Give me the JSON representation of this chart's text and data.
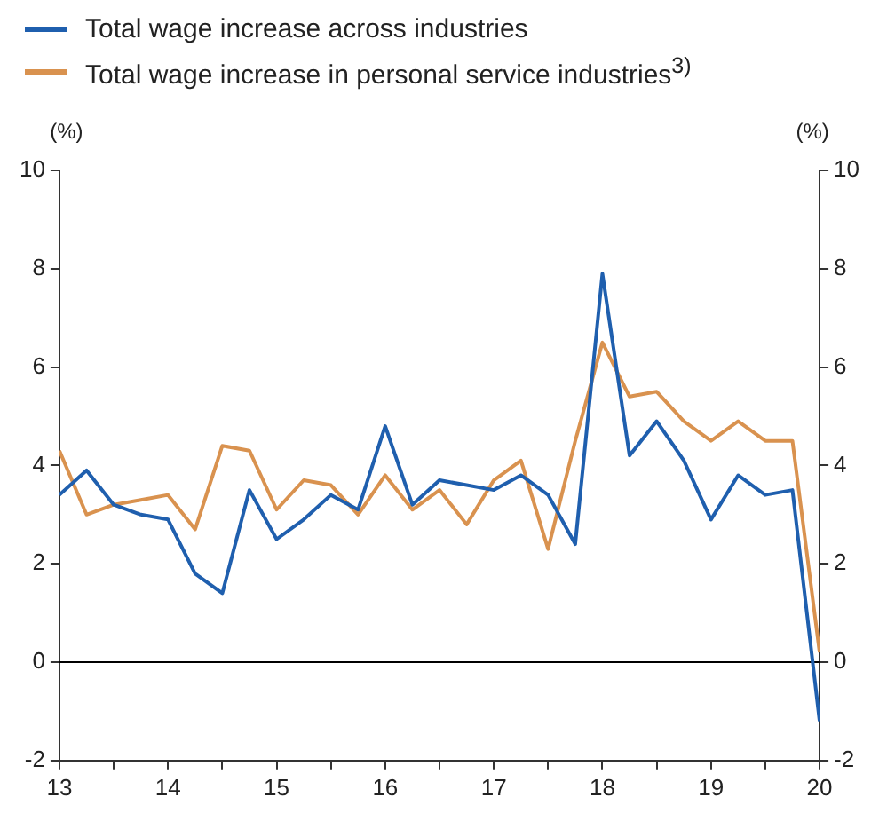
{
  "chart_data": {
    "type": "line",
    "legend": "top left",
    "ylabel": "(%)",
    "y2label": "(%)",
    "x": [
      13,
      13.25,
      13.5,
      13.75,
      14,
      14.25,
      14.5,
      14.75,
      15,
      15.25,
      15.5,
      15.75,
      16,
      16.25,
      16.5,
      16.75,
      17,
      17.25,
      17.5,
      17.75,
      18,
      18.25,
      18.5,
      18.75,
      19,
      19.25,
      19.5,
      19.75,
      20
    ],
    "series": [
      {
        "name": "Total wage increase across industries",
        "color": "#1f5fae",
        "values": [
          3.4,
          3.9,
          3.2,
          3.0,
          2.9,
          1.8,
          1.4,
          3.5,
          2.5,
          2.9,
          3.4,
          3.1,
          4.8,
          3.2,
          3.7,
          3.6,
          3.5,
          3.8,
          3.4,
          2.4,
          7.9,
          4.2,
          4.9,
          4.1,
          2.9,
          3.8,
          3.4,
          3.5,
          -1.2
        ]
      },
      {
        "name": "Total wage increase in personal service industries$^{3)}$",
        "color": "#d9924f",
        "values": [
          4.3,
          3.0,
          3.2,
          3.3,
          3.4,
          2.7,
          4.4,
          4.3,
          3.1,
          3.7,
          3.6,
          3.0,
          3.8,
          3.1,
          3.5,
          2.8,
          3.7,
          4.1,
          2.3,
          4.5,
          6.5,
          5.4,
          5.5,
          4.9,
          4.5,
          4.9,
          4.5,
          4.5,
          0.2
        ]
      }
    ],
    "xlim": [
      13,
      20
    ],
    "xticks": [
      13,
      {
        "value": 13.5,
        "label": null
      },
      14,
      {
        "value": 14.5,
        "label": null
      },
      15,
      {
        "value": 15.5,
        "label": null
      },
      16,
      {
        "value": 16.5,
        "label": null
      },
      17,
      {
        "value": 17.5,
        "label": null
      },
      18,
      {
        "value": 18.5,
        "label": null
      },
      19,
      {
        "value": 19.5,
        "label": null
      },
      20
    ],
    "ylim": [
      -2,
      10
    ],
    "yticks": [
      -2,
      0,
      2,
      4,
      6,
      8,
      10
    ],
    "y2lim": [
      -2,
      10
    ],
    "y2ticks": [
      -2,
      0,
      2,
      4,
      6,
      8,
      10
    ],
    "ref_lines": [
      {
        "axis": "y",
        "value": 0,
        "color": "#000000"
      }
    ],
    "line_style": "solid",
    "marker": "none"
  }
}
